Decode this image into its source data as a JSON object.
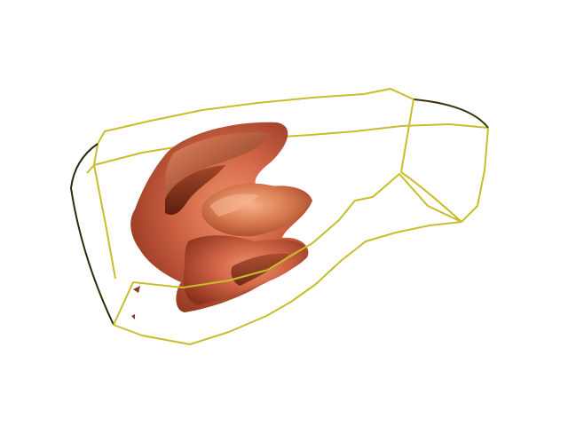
{
  "scene": {
    "background_color": "#ffffff",
    "box_edge_color": "#c8bd2a",
    "box_edge_shadow_color": "#2a2400",
    "isosurface_base_color": "#c55a3a",
    "isosurface_highlight_color": "#f4a07a",
    "isosurface_shadow_color": "#6e2412"
  }
}
